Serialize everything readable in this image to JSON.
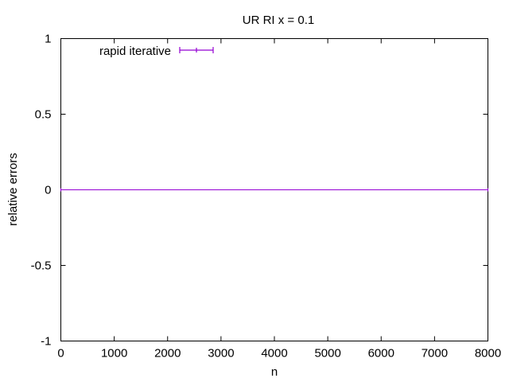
{
  "chart_data": {
    "type": "line",
    "title": "UR RI x = 0.1",
    "xlabel": "n",
    "ylabel": "relative errors",
    "xlim": [
      0,
      8000
    ],
    "ylim": [
      -1,
      1
    ],
    "xticks": [
      0,
      1000,
      2000,
      3000,
      4000,
      5000,
      6000,
      7000,
      8000
    ],
    "yticks": [
      -1,
      -0.5,
      0,
      0.5,
      1
    ],
    "xtick_labels": [
      "0",
      "1000",
      "2000",
      "3000",
      "4000",
      "5000",
      "6000",
      "7000",
      "8000"
    ],
    "ytick_labels": [
      "-1",
      "-0.5",
      "0",
      "0.5",
      "1"
    ],
    "grid": false,
    "legend_position": "top-left",
    "series": [
      {
        "name": "rapid iterative",
        "color": "#9400d3",
        "style": "errorbars",
        "x": [
          0,
          8000
        ],
        "y": [
          0,
          0
        ]
      }
    ]
  }
}
